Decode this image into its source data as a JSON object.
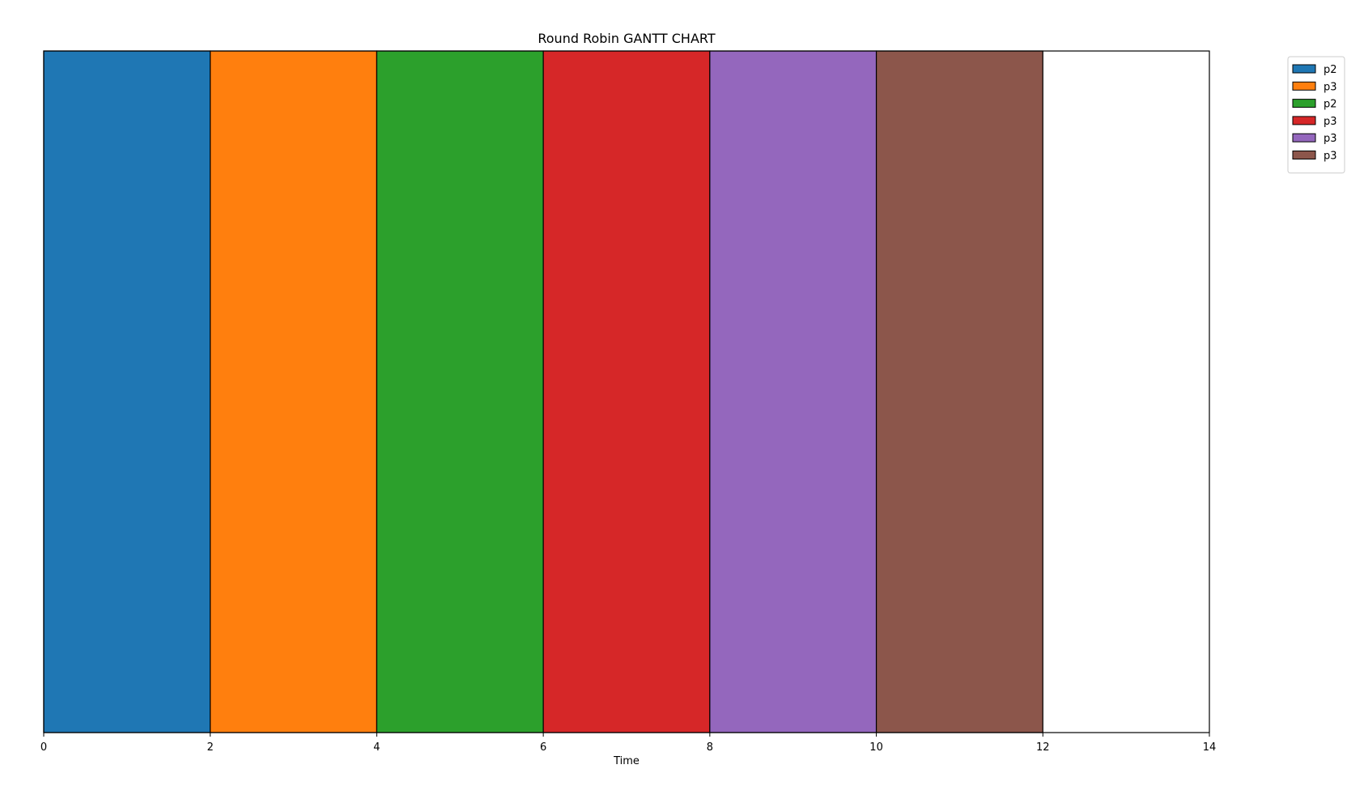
{
  "chart_data": {
    "type": "bar",
    "orientation": "horizontal-gantt",
    "title": "Round Robin GANTT CHART",
    "xlabel": "Time",
    "ylabel": "",
    "xlim": [
      0,
      14
    ],
    "xticks": [
      0,
      2,
      4,
      6,
      8,
      10,
      12,
      14
    ],
    "grid": false,
    "legend_position": "outside-top-right",
    "series": [
      {
        "name": "p2",
        "start": 0,
        "duration": 2,
        "color": "#1f77b4"
      },
      {
        "name": "p3",
        "start": 2,
        "duration": 2,
        "color": "#ff7f0e"
      },
      {
        "name": "p2",
        "start": 4,
        "duration": 2,
        "color": "#2ca02c"
      },
      {
        "name": "p3",
        "start": 6,
        "duration": 2,
        "color": "#d62728"
      },
      {
        "name": "p3",
        "start": 8,
        "duration": 2,
        "color": "#9467bd"
      },
      {
        "name": "p3",
        "start": 10,
        "duration": 2,
        "color": "#8c564b"
      }
    ]
  }
}
